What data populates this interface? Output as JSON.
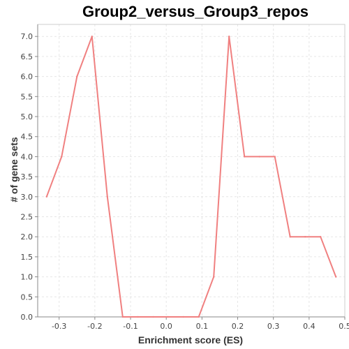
{
  "chart_data": {
    "type": "line",
    "title": "Group2_versus_Group3_repos",
    "xlabel": "Enrichment score (ES)",
    "ylabel": "# of gene sets",
    "xlim": [
      -0.36,
      0.5
    ],
    "ylim": [
      0.0,
      7.3
    ],
    "xticks": [
      -0.3,
      -0.2,
      -0.1,
      0.0,
      0.1,
      0.2,
      0.3,
      0.4,
      0.5
    ],
    "xtick_labels": [
      "-0.3",
      "-0.2",
      "-0.1",
      "0.0",
      "0.1",
      "0.2",
      "0.3",
      "0.4",
      "0.5"
    ],
    "yticks": [
      0.0,
      0.5,
      1.0,
      1.5,
      2.0,
      2.5,
      3.0,
      3.5,
      4.0,
      4.5,
      5.0,
      5.5,
      6.0,
      6.5,
      7.0
    ],
    "ytick_labels": [
      "0.0",
      "0.5",
      "1.0",
      "1.5",
      "2.0",
      "2.5",
      "3.0",
      "3.5",
      "4.0",
      "4.5",
      "5.0",
      "5.5",
      "6.0",
      "6.5",
      "7.0"
    ],
    "grid": true,
    "series": [
      {
        "color": "#f08080",
        "x": [
          -0.335,
          -0.293,
          -0.25,
          -0.208,
          -0.165,
          -0.122,
          -0.079,
          -0.037,
          0.005,
          0.048,
          0.091,
          0.133,
          0.176,
          0.219,
          0.261,
          0.304,
          0.347,
          0.389,
          0.432,
          0.475
        ],
        "y": [
          3,
          4,
          6,
          7,
          3,
          0,
          0,
          0,
          0,
          0,
          0,
          1,
          7,
          4,
          4,
          4,
          2,
          2,
          2,
          1
        ]
      }
    ]
  }
}
